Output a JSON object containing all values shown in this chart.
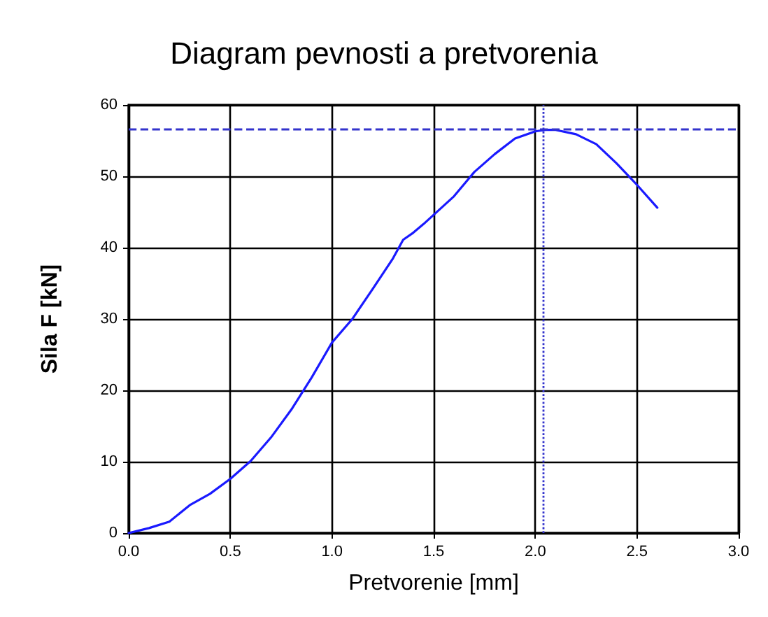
{
  "chart_data": {
    "type": "line",
    "title": "Diagram pevnosti a pretvorenia",
    "xlabel": "Pretvorenie [mm]",
    "ylabel": "Sila F [kN]",
    "x": [
      0,
      0.1,
      0.2,
      0.3,
      0.4,
      0.5,
      0.6,
      0.7,
      0.8,
      0.9,
      1.0,
      1.1,
      1.2,
      1.3,
      1.35,
      1.4,
      1.45,
      1.5,
      1.6,
      1.7,
      1.8,
      1.9,
      2.0,
      2.05,
      2.1,
      2.2,
      2.3,
      2.4,
      2.5,
      2.6
    ],
    "series": [
      {
        "color": "#1a1aff",
        "values": [
          0,
          0.7,
          1.6,
          3.9,
          5.5,
          7.6,
          10.1,
          13.4,
          17.3,
          21.8,
          26.7,
          30,
          34.2,
          38.5,
          41.1,
          42.1,
          43.3,
          44.6,
          47.2,
          50.6,
          53.1,
          55.3,
          56.3,
          56.5,
          56.5,
          55.9,
          54.5,
          51.8,
          48.8,
          45.6
        ]
      }
    ],
    "xlim": [
      0,
      3
    ],
    "xticks": [
      {
        "value": 0,
        "label": "0.0"
      },
      {
        "value": 0.5,
        "label": "0.5"
      },
      {
        "value": 1,
        "label": "1.0"
      },
      {
        "value": 1.5,
        "label": "1.5"
      },
      {
        "value": 2,
        "label": "2.0"
      },
      {
        "value": 2.5,
        "label": "2.5"
      },
      {
        "value": 3,
        "label": "3.0"
      }
    ],
    "ylim": [
      0,
      60
    ],
    "yticks": [
      0,
      10,
      20,
      30,
      40,
      50,
      60
    ],
    "grid": true,
    "marker": "none",
    "line_style": "solid",
    "ref_lines": [
      {
        "axis": "y",
        "value": 56.6,
        "color": "#3333cc",
        "line_style": "dashed"
      },
      {
        "axis": "x",
        "value": 2.04,
        "color": "#3333cc",
        "line_style": "dotted"
      }
    ]
  }
}
